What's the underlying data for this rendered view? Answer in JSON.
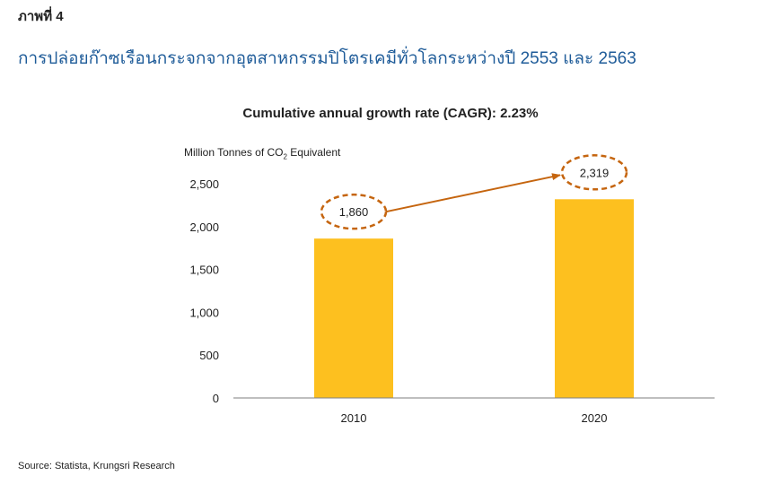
{
  "figure_label": "ภาพที่ 4",
  "figure_title": "การปล่อยก๊าซเรือนกระจกจากอุตสาหกรรมปิโตรเคมีทั่วโลกระหว่างปี 2553 และ 2563",
  "source": "Source: Statista, Krungsri Research",
  "colors": {
    "bar": "#fdc01f",
    "annotation": "#c5650f",
    "axis": "#7f7f7f",
    "title": "#1f5c99"
  },
  "chart_data": {
    "type": "bar",
    "title": "Cumulative annual growth rate (CAGR): 2.23%",
    "ylabel_main": "Million Tonnes of CO",
    "ylabel_sub": "2",
    "ylabel_tail": " Equivalent",
    "xlabel": "",
    "categories": [
      "2010",
      "2020"
    ],
    "values": [
      1860,
      2319
    ],
    "value_labels": [
      "1,860",
      "2,319"
    ],
    "ylim": [
      0,
      2500
    ],
    "yticks": [
      0,
      500,
      1000,
      1500,
      2000,
      2500
    ],
    "ytick_labels": [
      "0",
      "500",
      "1,000",
      "1,500",
      "2,000",
      "2,500"
    ],
    "grid": false,
    "annotation": "arrow from 2010 value to 2020 value with dashed ellipses around labels"
  }
}
